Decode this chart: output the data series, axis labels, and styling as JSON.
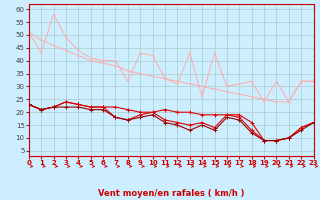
{
  "background_color": "#cceeff",
  "grid_color": "#aacccc",
  "xlabel": "Vent moyen/en rafales ( km/h )",
  "xlabel_color": "#cc0000",
  "xlabel_fontsize": 6,
  "xtick_color": "#cc0000",
  "ytick_color": "#444444",
  "xmin": 0,
  "xmax": 23,
  "ymin": 3,
  "ymax": 62,
  "yticks": [
    5,
    10,
    15,
    20,
    25,
    30,
    35,
    40,
    45,
    50,
    55,
    60
  ],
  "xticks": [
    0,
    1,
    2,
    3,
    4,
    5,
    6,
    7,
    8,
    9,
    10,
    11,
    12,
    13,
    14,
    15,
    16,
    17,
    18,
    19,
    20,
    21,
    22,
    23
  ],
  "line1_x": [
    0,
    1,
    2,
    3,
    4,
    5,
    6,
    7,
    8,
    9,
    10,
    11,
    12,
    13,
    14,
    15,
    16,
    17,
    18,
    19,
    20,
    21,
    22,
    23
  ],
  "line1_y": [
    51,
    43,
    58,
    49,
    44,
    41,
    40,
    40,
    32,
    43,
    42,
    33,
    31,
    43,
    26,
    43,
    30,
    31,
    32,
    24,
    32,
    24,
    32,
    32
  ],
  "line1_color": "#ffaaaa",
  "line2_x": [
    0,
    1,
    2,
    3,
    4,
    5,
    6,
    7,
    8,
    9,
    10,
    11,
    12,
    13,
    14,
    15,
    16,
    17,
    18,
    19,
    20,
    21,
    22,
    23
  ],
  "line2_y": [
    51,
    48,
    46,
    44,
    42,
    40,
    39,
    38,
    36,
    35,
    34,
    33,
    32,
    31,
    30,
    29,
    28,
    27,
    26,
    25,
    24,
    24,
    32,
    32
  ],
  "line2_color": "#ffaaaa",
  "line3_x": [
    0,
    1,
    2,
    3,
    4,
    5,
    6,
    7,
    8,
    9,
    10,
    11,
    12,
    13,
    14,
    15,
    16,
    17,
    18,
    19,
    20,
    21,
    22,
    23
  ],
  "line3_y": [
    23,
    21,
    22,
    24,
    23,
    22,
    22,
    22,
    21,
    20,
    20,
    21,
    20,
    20,
    19,
    19,
    19,
    19,
    16,
    9,
    9,
    10,
    14,
    16
  ],
  "line3_color": "#dd0000",
  "line4_x": [
    0,
    1,
    2,
    3,
    4,
    5,
    6,
    7,
    8,
    9,
    10,
    11,
    12,
    13,
    14,
    15,
    16,
    17,
    18,
    19,
    20,
    21,
    22,
    23
  ],
  "line4_y": [
    23,
    21,
    22,
    24,
    23,
    22,
    22,
    18,
    17,
    19,
    20,
    17,
    16,
    15,
    16,
    14,
    19,
    18,
    13,
    9,
    9,
    10,
    14,
    16
  ],
  "line4_color": "#dd0000",
  "line5_x": [
    0,
    1,
    2,
    3,
    4,
    5,
    6,
    7,
    8,
    9,
    10,
    11,
    12,
    13,
    14,
    15,
    16,
    17,
    18,
    19,
    20,
    21,
    22,
    23
  ],
  "line5_y": [
    23,
    21,
    22,
    22,
    22,
    21,
    21,
    18,
    17,
    18,
    19,
    16,
    15,
    13,
    15,
    13,
    18,
    17,
    12,
    9,
    9,
    10,
    13,
    16
  ],
  "line5_color": "#990000",
  "arrow_color": "#cc0000",
  "tick_fontsize": 5,
  "ytick_fontsize": 5
}
